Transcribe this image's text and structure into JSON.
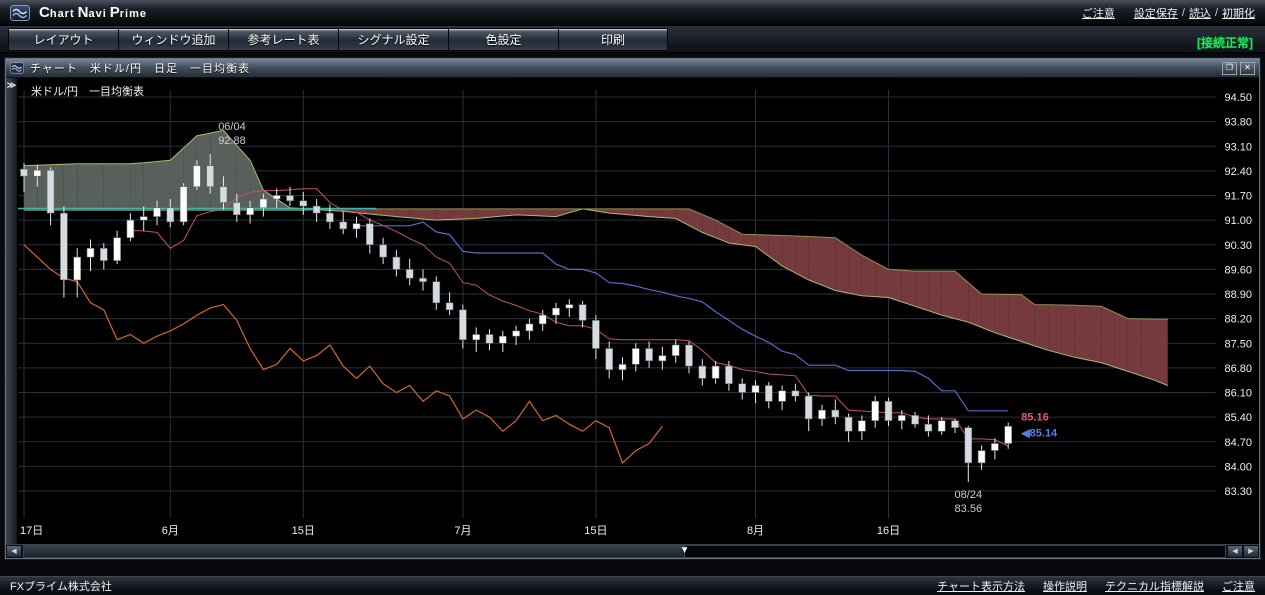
{
  "app": {
    "logo_parts": [
      "C",
      "hart",
      "N",
      "avi",
      "P",
      "rime"
    ],
    "top_links": [
      {
        "label": "ご注意",
        "sep": "　"
      },
      {
        "label": "設定保存",
        "sep": "/ "
      },
      {
        "label": "読込",
        "sep": "/ "
      },
      {
        "label": "初期化",
        "sep": ""
      }
    ],
    "toolbar_buttons": [
      "レイアウト",
      "ウィンドウ追加",
      "参考レート表",
      "シグナル設定",
      "色設定",
      "印刷"
    ],
    "connection_status": "[接続正常]"
  },
  "window": {
    "title": "チャート　米ドル/円　日足　一目均衡表",
    "expander": "≫",
    "maximize_glyph": "❐",
    "close_glyph": "✕"
  },
  "scrollbar": {
    "left_glyph": "◀",
    "right_glyph_a": "◀",
    "right_glyph_b": "▶",
    "thumb_glyph": "▼",
    "position_pct": 55
  },
  "footer": {
    "company": "FXプライム株式会社",
    "links": [
      "チャート表示方法",
      "操作説明",
      "テクニカル指標解説",
      "ご注意"
    ]
  },
  "chart_data": {
    "type": "candlestick",
    "title": "米ドル/円　一目均衡表",
    "symbol": "米ドル/円",
    "timeframe": "日足",
    "indicator": "一目均衡表",
    "ylim": [
      83.0,
      94.85
    ],
    "y_ticks": [
      94.5,
      93.8,
      93.1,
      92.4,
      91.7,
      91.0,
      90.3,
      89.6,
      88.9,
      88.2,
      87.5,
      86.8,
      86.1,
      85.4,
      84.7,
      84.0,
      83.3
    ],
    "x_labels": [
      {
        "idx": 0,
        "label": "17日"
      },
      {
        "idx": 11,
        "label": "6月"
      },
      {
        "idx": 21,
        "label": "15日"
      },
      {
        "idx": 33,
        "label": "7月"
      },
      {
        "idx": 43,
        "label": "15日"
      },
      {
        "idx": 55,
        "label": "8月"
      },
      {
        "idx": 65,
        "label": "16日"
      }
    ],
    "candles": [
      [
        92.45,
        92.62,
        91.8,
        92.25
      ],
      [
        92.25,
        92.58,
        91.95,
        92.42
      ],
      [
        92.42,
        92.5,
        90.85,
        91.2
      ],
      [
        91.2,
        91.4,
        88.8,
        89.3
      ],
      [
        89.3,
        90.2,
        88.8,
        89.95
      ],
      [
        89.95,
        90.45,
        89.55,
        90.2
      ],
      [
        90.2,
        90.35,
        89.6,
        89.85
      ],
      [
        89.85,
        90.7,
        89.75,
        90.5
      ],
      [
        90.5,
        91.2,
        90.4,
        91.0
      ],
      [
        91.0,
        91.4,
        90.7,
        91.1
      ],
      [
        91.1,
        91.55,
        90.85,
        91.35
      ],
      [
        91.35,
        91.6,
        90.8,
        90.95
      ],
      [
        90.95,
        92.05,
        90.85,
        91.95
      ],
      [
        91.95,
        92.7,
        91.85,
        92.55
      ],
      [
        92.55,
        92.88,
        91.75,
        91.95
      ],
      [
        91.95,
        92.25,
        91.3,
        91.5
      ],
      [
        91.5,
        91.75,
        90.95,
        91.15
      ],
      [
        91.15,
        91.55,
        90.9,
        91.35
      ],
      [
        91.35,
        91.75,
        91.1,
        91.6
      ],
      [
        91.6,
        91.9,
        91.35,
        91.7
      ],
      [
        91.7,
        91.95,
        91.4,
        91.55
      ],
      [
        91.55,
        91.8,
        91.15,
        91.4
      ],
      [
        91.4,
        91.6,
        90.95,
        91.2
      ],
      [
        91.2,
        91.45,
        90.75,
        90.95
      ],
      [
        90.95,
        91.25,
        90.6,
        90.75
      ],
      [
        90.75,
        91.1,
        90.5,
        90.9
      ],
      [
        90.9,
        91.05,
        90.05,
        90.3
      ],
      [
        90.3,
        90.5,
        89.75,
        89.95
      ],
      [
        89.95,
        90.15,
        89.4,
        89.6
      ],
      [
        89.6,
        89.9,
        89.15,
        89.35
      ],
      [
        89.35,
        89.6,
        89.0,
        89.25
      ],
      [
        89.25,
        89.4,
        88.45,
        88.65
      ],
      [
        88.65,
        88.95,
        88.3,
        88.45
      ],
      [
        88.45,
        88.6,
        87.35,
        87.6
      ],
      [
        87.6,
        87.95,
        87.25,
        87.75
      ],
      [
        87.75,
        87.9,
        87.3,
        87.5
      ],
      [
        87.5,
        87.85,
        87.25,
        87.7
      ],
      [
        87.7,
        88.0,
        87.45,
        87.85
      ],
      [
        87.85,
        88.2,
        87.6,
        88.05
      ],
      [
        88.05,
        88.45,
        87.85,
        88.3
      ],
      [
        88.3,
        88.65,
        88.05,
        88.5
      ],
      [
        88.5,
        88.75,
        88.25,
        88.6
      ],
      [
        88.6,
        88.7,
        87.95,
        88.15
      ],
      [
        88.15,
        88.3,
        87.05,
        87.35
      ],
      [
        87.35,
        87.55,
        86.5,
        86.75
      ],
      [
        86.75,
        87.1,
        86.45,
        86.9
      ],
      [
        86.9,
        87.5,
        86.7,
        87.35
      ],
      [
        87.35,
        87.55,
        86.8,
        87.0
      ],
      [
        87.0,
        87.4,
        86.75,
        87.15
      ],
      [
        87.15,
        87.6,
        86.95,
        87.45
      ],
      [
        87.45,
        87.55,
        86.65,
        86.85
      ],
      [
        86.85,
        87.05,
        86.3,
        86.5
      ],
      [
        86.5,
        87.0,
        86.35,
        86.85
      ],
      [
        86.85,
        87.0,
        86.15,
        86.35
      ],
      [
        86.35,
        86.5,
        85.9,
        86.1
      ],
      [
        86.1,
        86.45,
        85.8,
        86.3
      ],
      [
        86.3,
        86.4,
        85.65,
        85.85
      ],
      [
        85.85,
        86.3,
        85.6,
        86.15
      ],
      [
        86.15,
        86.35,
        85.85,
        86.0
      ],
      [
        86.0,
        86.1,
        85.0,
        85.35
      ],
      [
        85.35,
        85.75,
        85.15,
        85.6
      ],
      [
        85.6,
        85.9,
        85.2,
        85.4
      ],
      [
        85.4,
        85.5,
        84.7,
        85.0
      ],
      [
        85.0,
        85.45,
        84.75,
        85.3
      ],
      [
        85.3,
        86.0,
        85.1,
        85.85
      ],
      [
        85.85,
        85.95,
        85.15,
        85.3
      ],
      [
        85.3,
        85.6,
        85.05,
        85.45
      ],
      [
        85.45,
        85.55,
        85.1,
        85.2
      ],
      [
        85.2,
        85.45,
        84.85,
        85.0
      ],
      [
        85.0,
        85.4,
        84.9,
        85.3
      ],
      [
        85.3,
        85.35,
        84.95,
        85.1
      ],
      [
        85.1,
        85.15,
        83.56,
        84.1
      ],
      [
        84.1,
        84.6,
        83.9,
        84.45
      ],
      [
        84.45,
        84.8,
        84.2,
        84.65
      ],
      [
        84.65,
        85.25,
        84.5,
        85.14
      ]
    ],
    "ichimoku": {
      "tenkan_period": 9,
      "kijun_period": 26,
      "chikou_shift": 26,
      "cloud_end_idx": 86,
      "senkou_a": [
        [
          0,
          92.55
        ],
        [
          4,
          92.6
        ],
        [
          8,
          92.6
        ],
        [
          11,
          92.7
        ],
        [
          13,
          93.4
        ],
        [
          15,
          93.55
        ],
        [
          17,
          92.7
        ],
        [
          18,
          91.85
        ],
        [
          20,
          91.35
        ],
        [
          24,
          91.25
        ],
        [
          28,
          91.1
        ],
        [
          31,
          91.0
        ],
        [
          34,
          91.05
        ],
        [
          37,
          91.15
        ],
        [
          40,
          91.1
        ],
        [
          42,
          91.32
        ],
        [
          44,
          91.2
        ],
        [
          47,
          91.1
        ],
        [
          49,
          91.05
        ],
        [
          51,
          90.65
        ],
        [
          53,
          90.35
        ],
        [
          55,
          90.25
        ],
        [
          57,
          89.7
        ],
        [
          59,
          89.3
        ],
        [
          61,
          89.0
        ],
        [
          63,
          88.85
        ],
        [
          65,
          88.8
        ],
        [
          67,
          88.55
        ],
        [
          69,
          88.3
        ],
        [
          71,
          88.1
        ],
        [
          73,
          87.8
        ],
        [
          75,
          87.55
        ],
        [
          77,
          87.3
        ],
        [
          79,
          87.1
        ],
        [
          81,
          86.95
        ],
        [
          83,
          86.7
        ],
        [
          85,
          86.45
        ],
        [
          86,
          86.3
        ]
      ],
      "senkou_b": [
        [
          0,
          91.28
        ],
        [
          21,
          91.28
        ],
        [
          23,
          91.32
        ],
        [
          50,
          91.32
        ],
        [
          52,
          91.0
        ],
        [
          54,
          90.6
        ],
        [
          58,
          90.55
        ],
        [
          61,
          90.5
        ],
        [
          63,
          90.0
        ],
        [
          65,
          89.6
        ],
        [
          67,
          89.55
        ],
        [
          70,
          89.55
        ],
        [
          72,
          88.9
        ],
        [
          75,
          88.88
        ],
        [
          76,
          88.6
        ],
        [
          79,
          88.58
        ],
        [
          81,
          88.55
        ],
        [
          83,
          88.2
        ],
        [
          86,
          88.18
        ]
      ]
    },
    "level_line": {
      "price": 91.33,
      "from": 0,
      "to": 26.5,
      "color": "#2fb9b9"
    },
    "annotations": [
      {
        "idx": 14,
        "lines": [
          "06/04",
          "92.88"
        ],
        "anchor": "high",
        "align": "start"
      },
      {
        "idx": 71,
        "lines": [
          "08/24",
          "83.56"
        ],
        "anchor": "low",
        "align": "middle"
      }
    ],
    "price_markers": [
      {
        "text": "85.16",
        "price": 85.16,
        "dy": -5,
        "color": "#e25a68"
      },
      {
        "text": "◀85.14",
        "price": 85.14,
        "dy": 10,
        "color": "#5082e8"
      }
    ],
    "colors": {
      "up": "#ffffff",
      "down": "#d6dbe0",
      "wick": "#e6e6e6",
      "grid": "#2b3138",
      "cloud_bull": "#59605b",
      "cloud_bear": "#743a3d",
      "senkou_a": "#b4b868",
      "senkou_b": "#90924e",
      "tenkan": "#c25362",
      "kijun": "#5b6ac8",
      "chikou": "#cc6a2e"
    }
  }
}
